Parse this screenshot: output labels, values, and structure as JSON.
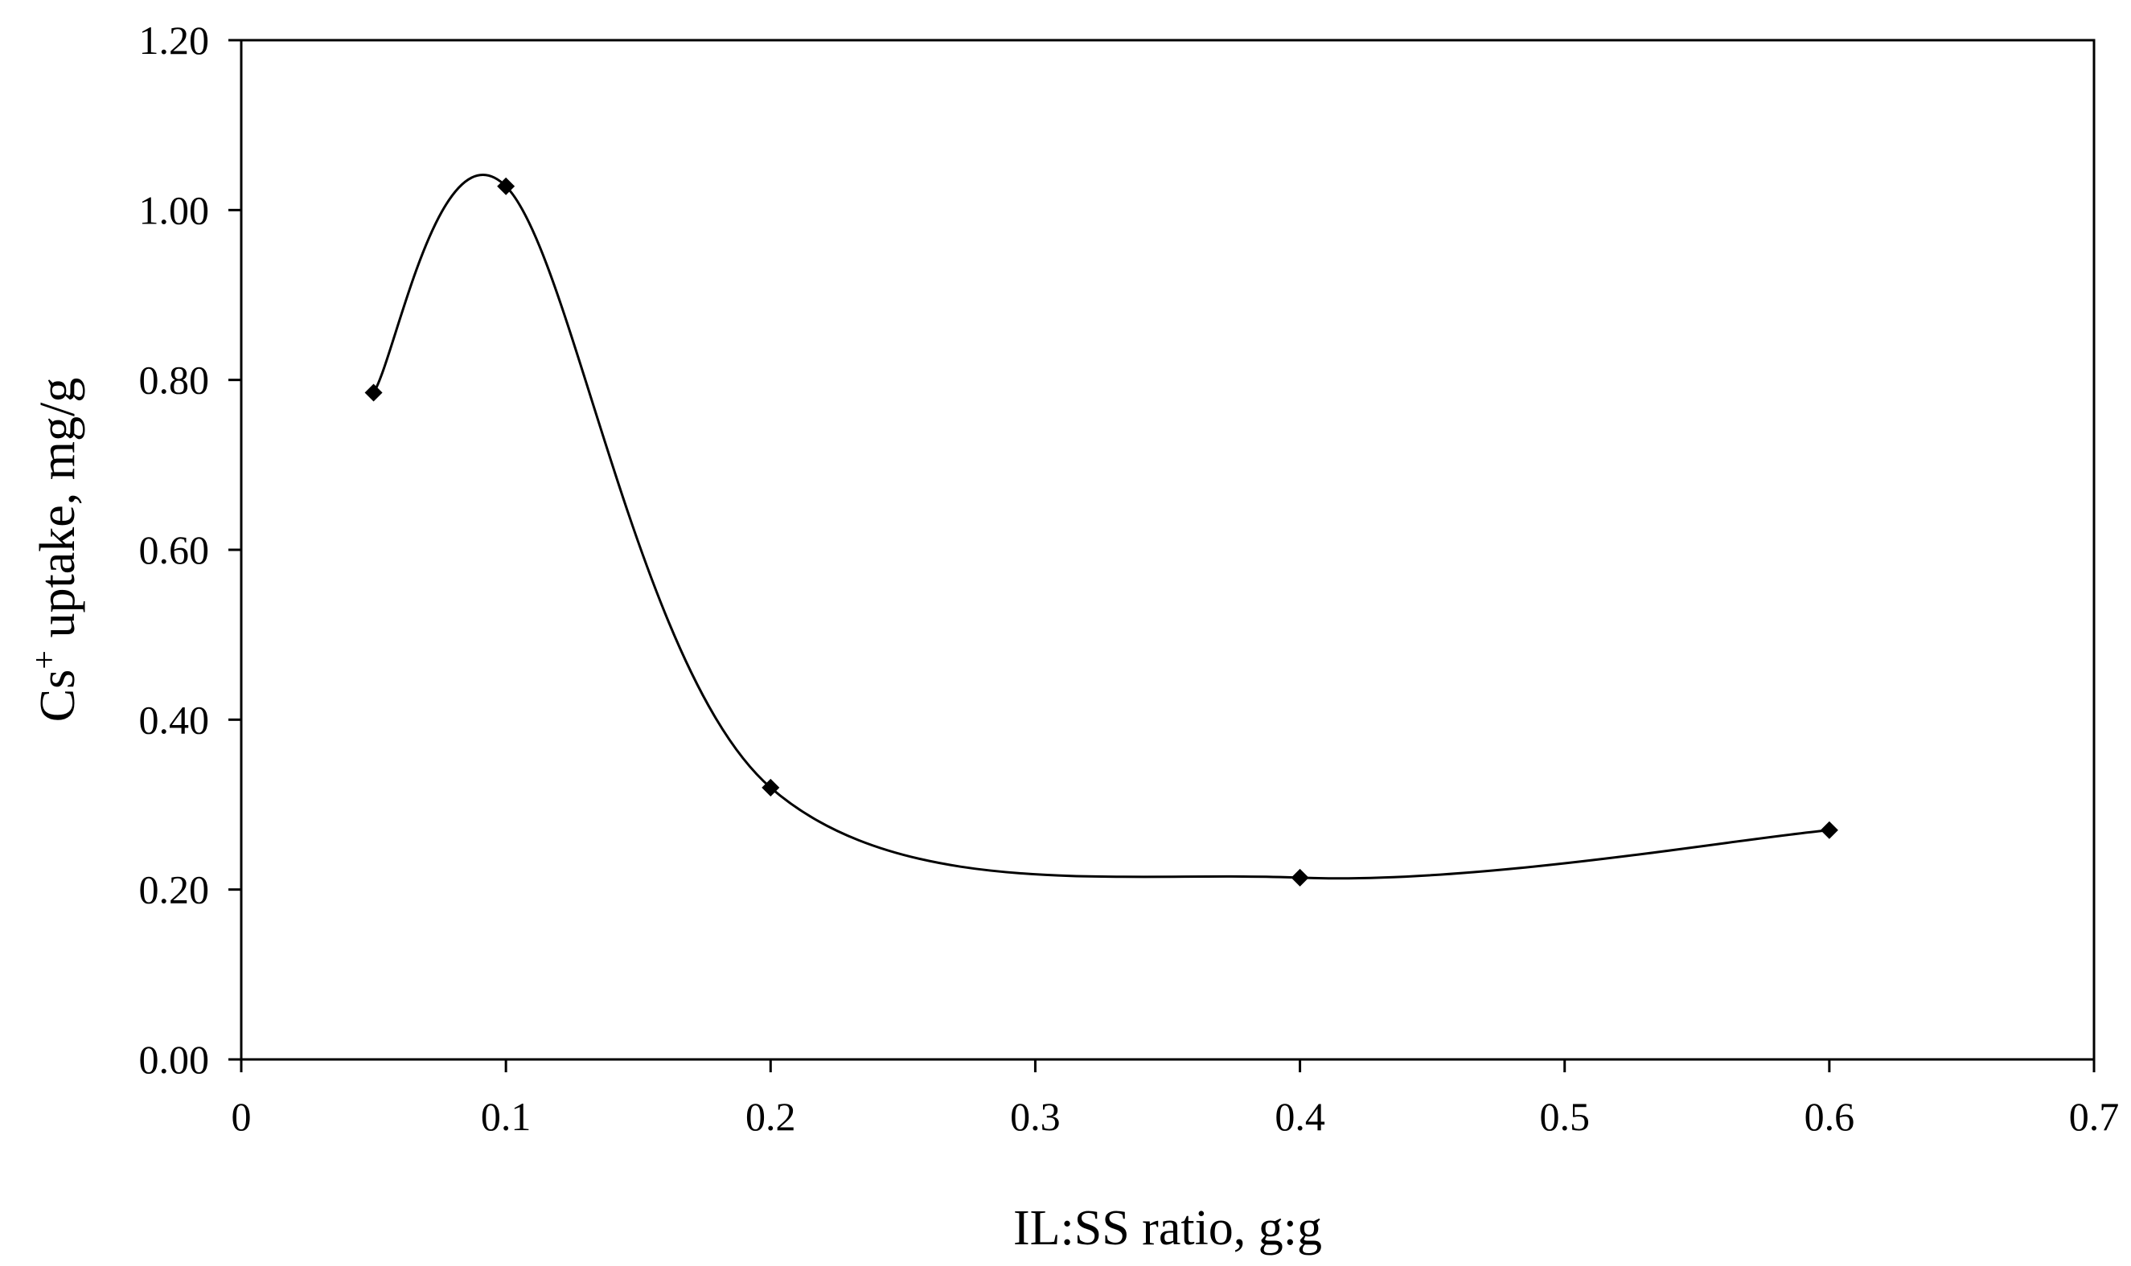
{
  "chart_data": {
    "type": "scatter",
    "title": "",
    "xlabel": "IL:SS ratio, g:g",
    "ylabel": {
      "prefix": "Cs",
      "superscript": "+",
      "suffix": " uptake, mg/g"
    },
    "xlim": [
      0,
      0.7
    ],
    "ylim": [
      0,
      1.2
    ],
    "x_ticks": [
      "0",
      "0.1",
      "0.2",
      "0.3",
      "0.4",
      "0.5",
      "0.6",
      "0.7"
    ],
    "y_ticks": [
      "0.00",
      "0.20",
      "0.40",
      "0.60",
      "0.80",
      "1.00",
      "1.20"
    ],
    "grid": false,
    "legend": "none",
    "line_style": "smoothed",
    "marker": "diamond",
    "series": [
      {
        "x": [
          0.05,
          0.1,
          0.2,
          0.4,
          0.6
        ],
        "y": [
          0.785,
          1.028,
          0.32,
          0.214,
          0.27
        ]
      }
    ],
    "colors": {
      "line": "#000000",
      "marker": "#000000",
      "axes": "#000000"
    }
  }
}
